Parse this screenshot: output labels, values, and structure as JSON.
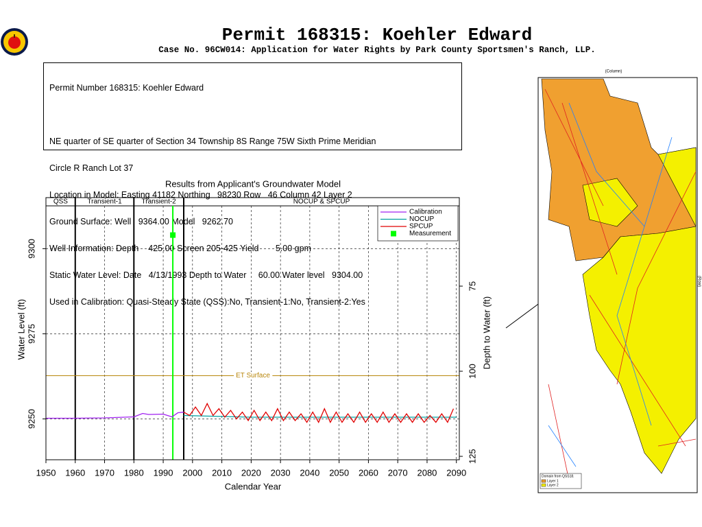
{
  "header": {
    "title": "Permit 168315:  Koehler Edward",
    "subtitle": "Case No. 96CW014: Application for Water Rights by Park County Sportsmen's Ranch, LLP."
  },
  "info": {
    "lines": [
      "Permit Number 168315: Koehler Edward",
      "NE quarter of SE quarter of Section 34 Township 8S Range 75W Sixth Prime Meridian",
      "Circle R Ranch Lot 37",
      "Location in Model: Easting 41182 Northing   98230 Row   46 Column 42 Layer 2",
      "Ground Surface: Well   9364.00 Model   9262.70",
      "Well Information: Depth    425.00 Screen 205-425 Yield       5.00 gpm",
      "Static Water Level: Date   4/13/1993 Depth to Water     60.00 Water level   9304.00",
      "Used in Calibration: Quasi-Steady State (QSS):No, Transient-1:No, Transient-2:Yes"
    ]
  },
  "chart_data": {
    "type": "line",
    "title": "Results from Applicant's Groundwater Model",
    "xlabel": "Calendar Year",
    "ylabel": "Water Level (ft)",
    "y2label": "Depth to Water (ft)",
    "xlim": [
      1950,
      2091
    ],
    "xticks": [
      1950,
      1960,
      1970,
      1980,
      1990,
      2000,
      2010,
      2020,
      2030,
      2040,
      2050,
      2060,
      2070,
      2080,
      2090
    ],
    "ylim": [
      9238,
      9315
    ],
    "yticks": [
      9250,
      9275,
      9300
    ],
    "y2lim": [
      126,
      49
    ],
    "y2ticks": [
      75,
      100,
      125
    ],
    "grid": true,
    "legend": "upper right",
    "periods": [
      {
        "name": "QSS",
        "start": 1950,
        "end": 1960
      },
      {
        "name": "Transient-1",
        "start": 1960,
        "end": 1980
      },
      {
        "name": "Transient-2",
        "start": 1980,
        "end": 1997
      },
      {
        "name": "NOCUP  &  SPCUP",
        "start": 1997,
        "end": 2091
      }
    ],
    "et_surface": {
      "label": "ET Surface",
      "value": 9262.7,
      "color": "#b8860b"
    },
    "series": [
      {
        "name": "Calibration",
        "color": "#a020f0",
        "x": [
          1950,
          1960,
          1970,
          1980,
          1983,
          1985,
          1990,
          1993,
          1995,
          1997
        ],
        "values": [
          9250.2,
          9250.2,
          9250.3,
          9250.6,
          9251.6,
          9251.3,
          9251.4,
          9250.6,
          9251.8,
          9252
        ]
      },
      {
        "name": "NOCUP",
        "color": "#00a0a0",
        "x": [
          1997,
          2020,
          2040,
          2060,
          2090
        ],
        "values": [
          9251,
          9250.5,
          9250.5,
          9250.5,
          9250.5
        ]
      },
      {
        "name": "SPCUP",
        "color": "#e00000",
        "x": [
          1997,
          1999,
          2001,
          2003,
          2005,
          2007,
          2009,
          2011,
          2013,
          2015,
          2017,
          2019,
          2021,
          2023,
          2025,
          2027,
          2029,
          2031,
          2033,
          2035,
          2037,
          2039,
          2041,
          2043,
          2045,
          2047,
          2049,
          2051,
          2053,
          2055,
          2057,
          2059,
          2061,
          2063,
          2065,
          2067,
          2069,
          2071,
          2073,
          2075,
          2077,
          2079,
          2081,
          2083,
          2085,
          2087,
          2089
        ],
        "values": [
          9252,
          9251,
          9253.5,
          9251,
          9254.5,
          9251,
          9253,
          9250.5,
          9252.5,
          9250,
          9252,
          9249.5,
          9252.5,
          9249.5,
          9252,
          9249.5,
          9253,
          9249.5,
          9252,
          9249.5,
          9251.5,
          9249,
          9252,
          9249,
          9253,
          9249,
          9252,
          9249,
          9251.5,
          9249,
          9252,
          9249,
          9251.5,
          9249,
          9252,
          9249,
          9251.5,
          9249,
          9251.5,
          9249,
          9251.5,
          9249,
          9251,
          9249,
          9251.5,
          9249,
          9253
        ]
      }
    ],
    "measurement": {
      "name": "Measurement",
      "color": "#00ff00",
      "x": 1993.28,
      "y": 9304
    }
  },
  "map": {
    "column_label": "(Column)",
    "row_label": "(Row)",
    "legend_title": "Domain from QSS18.",
    "legend_items": [
      "Layer 1",
      "Layer 2"
    ]
  }
}
